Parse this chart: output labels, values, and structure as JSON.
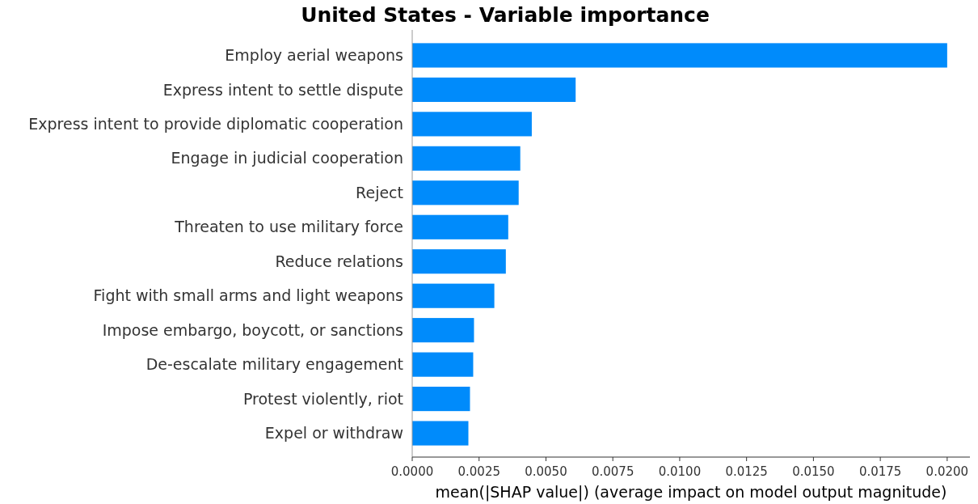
{
  "chart_data": {
    "type": "bar",
    "orientation": "horizontal",
    "title": "United States - Variable importance",
    "xlabel": "mean(|SHAP value|) (average impact on model output magnitude)",
    "categories": [
      "Employ aerial weapons",
      "Express intent to settle dispute",
      "Express intent to provide diplomatic cooperation",
      "Engage in judicial cooperation",
      "Reject",
      "Threaten to use military force",
      "Reduce relations",
      "Fight with small arms and light weapons",
      "Impose embargo, boycott, or sanctions",
      "De-escalate military engagement",
      "Protest violently, riot",
      "Expel or withdraw"
    ],
    "values": [
      0.02,
      0.00611,
      0.00447,
      0.00404,
      0.00398,
      0.00359,
      0.0035,
      0.00307,
      0.00231,
      0.00228,
      0.00216,
      0.0021
    ],
    "color": "#008bfb",
    "xlim": [
      0,
      0.02085
    ],
    "xticks": [
      {
        "value": 0,
        "label": "0.0000"
      },
      {
        "value": 0.0025,
        "label": "0.0025"
      },
      {
        "value": 0.005,
        "label": "0.0050"
      },
      {
        "value": 0.0075,
        "label": "0.0075"
      },
      {
        "value": 0.01,
        "label": "0.0100"
      },
      {
        "value": 0.0125,
        "label": "0.0125"
      },
      {
        "value": 0.015,
        "label": "0.0150"
      },
      {
        "value": 0.0175,
        "label": "0.0175"
      },
      {
        "value": 0.02,
        "label": "0.0200"
      }
    ],
    "grid": false
  }
}
